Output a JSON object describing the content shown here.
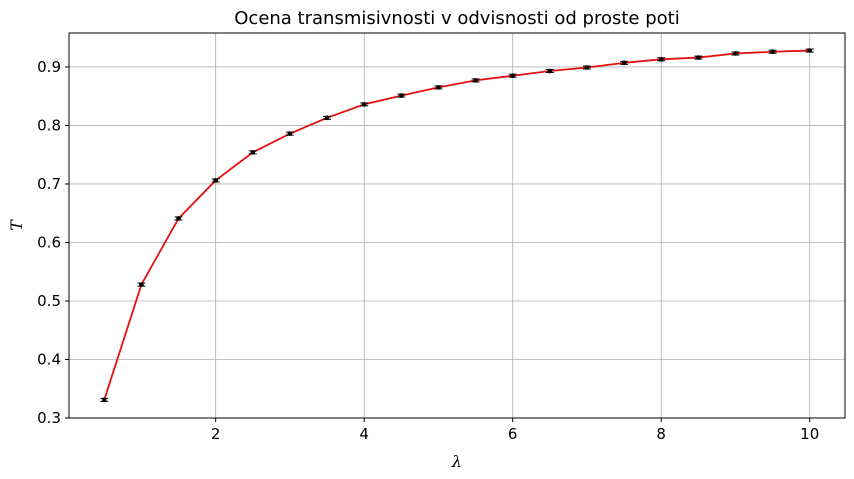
{
  "chart_data": {
    "type": "line",
    "title": "Ocena transmisivnosti v odvisnosti od proste poti",
    "xlabel": "λ",
    "ylabel": "T",
    "xlim": [
      0.025,
      10.475
    ],
    "ylim": [
      0.3,
      0.958
    ],
    "xticks": [
      2,
      4,
      6,
      8,
      10
    ],
    "yticks": [
      0.3,
      0.4,
      0.5,
      0.6,
      0.7,
      0.8,
      0.9
    ],
    "grid": true,
    "legend": "none",
    "series": [
      {
        "line_color": "#e41010",
        "marker_color": "#000000",
        "marker": "errorbar-dot",
        "x": [
          0.5,
          1.0,
          1.5,
          2.0,
          2.5,
          3.0,
          3.5,
          4.0,
          4.5,
          5.0,
          5.5,
          6.0,
          6.5,
          7.0,
          7.5,
          8.0,
          8.5,
          9.0,
          9.5,
          10.0
        ],
        "y": [
          0.331,
          0.528,
          0.641,
          0.706,
          0.754,
          0.786,
          0.813,
          0.836,
          0.851,
          0.865,
          0.877,
          0.885,
          0.893,
          0.899,
          0.907,
          0.913,
          0.916,
          0.923,
          0.926,
          0.928
        ]
      }
    ]
  }
}
